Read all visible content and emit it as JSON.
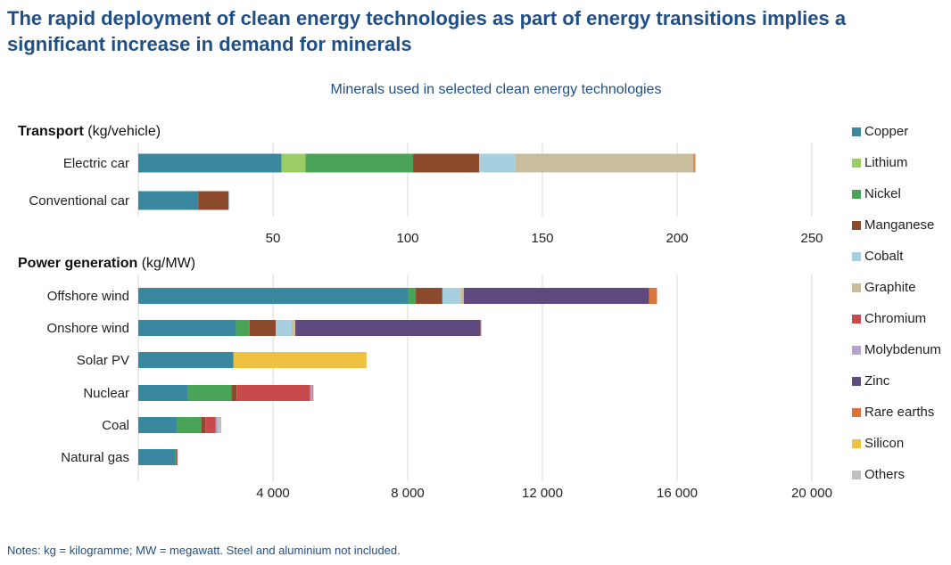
{
  "title": "The rapid deployment of clean energy technologies as part of energy transitions implies a significant increase in demand for minerals",
  "note": "Notes: kg = kilogramme; MW = megawatt. Steel and aluminium not included.",
  "chart_data": {
    "type": "bar",
    "orientation": "horizontal",
    "stacked": true,
    "title": "Minerals used in selected clean energy technologies",
    "legend_position": "right",
    "grid": true,
    "minerals": [
      {
        "name": "Copper",
        "color": "#3a87a0"
      },
      {
        "name": "Lithium",
        "color": "#9ccc65"
      },
      {
        "name": "Nickel",
        "color": "#4aa457"
      },
      {
        "name": "Manganese",
        "color": "#8c4a2c"
      },
      {
        "name": "Cobalt",
        "color": "#a6cfe0"
      },
      {
        "name": "Graphite",
        "color": "#c8be9c"
      },
      {
        "name": "Chromium",
        "color": "#c84b4b"
      },
      {
        "name": "Molybdenum",
        "color": "#b4a2cb"
      },
      {
        "name": "Zinc",
        "color": "#5e4a7e"
      },
      {
        "name": "Rare earths",
        "color": "#db7539"
      },
      {
        "name": "Silicon",
        "color": "#f0c040"
      },
      {
        "name": "Others",
        "color": "#c0c0c0"
      }
    ],
    "panels": [
      {
        "label_bold": "Transport",
        "label_unit": " (kg/vehicle)",
        "xlim": [
          0,
          250
        ],
        "ticks": [
          50,
          100,
          150,
          200,
          250
        ],
        "tick_labels": [
          "50",
          "100",
          "150",
          "200",
          "250"
        ],
        "categories": [
          "Electric car",
          "Conventional car"
        ],
        "values": [
          [
            53.2,
            8.9,
            39.9,
            24.5,
            13.3,
            66.3,
            0,
            0,
            0,
            0.5,
            0,
            0.3
          ],
          [
            22.3,
            0,
            0,
            11.2,
            0,
            0,
            0,
            0,
            0,
            0,
            0,
            0.3
          ]
        ]
      },
      {
        "label_bold": "Power generation",
        "label_unit": " (kg/MW)",
        "xlim": [
          0,
          20000
        ],
        "ticks": [
          4000,
          8000,
          12000,
          16000,
          20000
        ],
        "tick_labels": [
          "4 000",
          "8 000",
          "12 000",
          "16 000",
          "20 000"
        ],
        "categories": [
          "Offshore wind",
          "Onshore wind",
          "Solar PV",
          "Nuclear",
          "Coal",
          "Natural gas"
        ],
        "values": [
          [
            8000,
            0,
            240,
            790,
            525,
            109,
            0,
            0,
            5500,
            239,
            0,
            0
          ],
          [
            2900,
            0,
            404,
            780,
            470,
            109,
            0,
            0,
            5500,
            14,
            0,
            0
          ],
          [
            2822,
            0,
            1.3,
            0,
            0,
            0,
            0,
            0,
            0,
            0,
            3955,
            0
          ],
          [
            1473,
            0,
            1297,
            148,
            0,
            0,
            2190,
            70,
            0,
            0.5,
            0,
            0
          ],
          [
            1150,
            0,
            721,
            121,
            0,
            0,
            308,
            66,
            0,
            0,
            0,
            100
          ],
          [
            1100,
            0,
            16,
            0,
            0,
            0,
            48,
            0,
            0,
            0,
            0,
            0
          ]
        ]
      }
    ]
  }
}
